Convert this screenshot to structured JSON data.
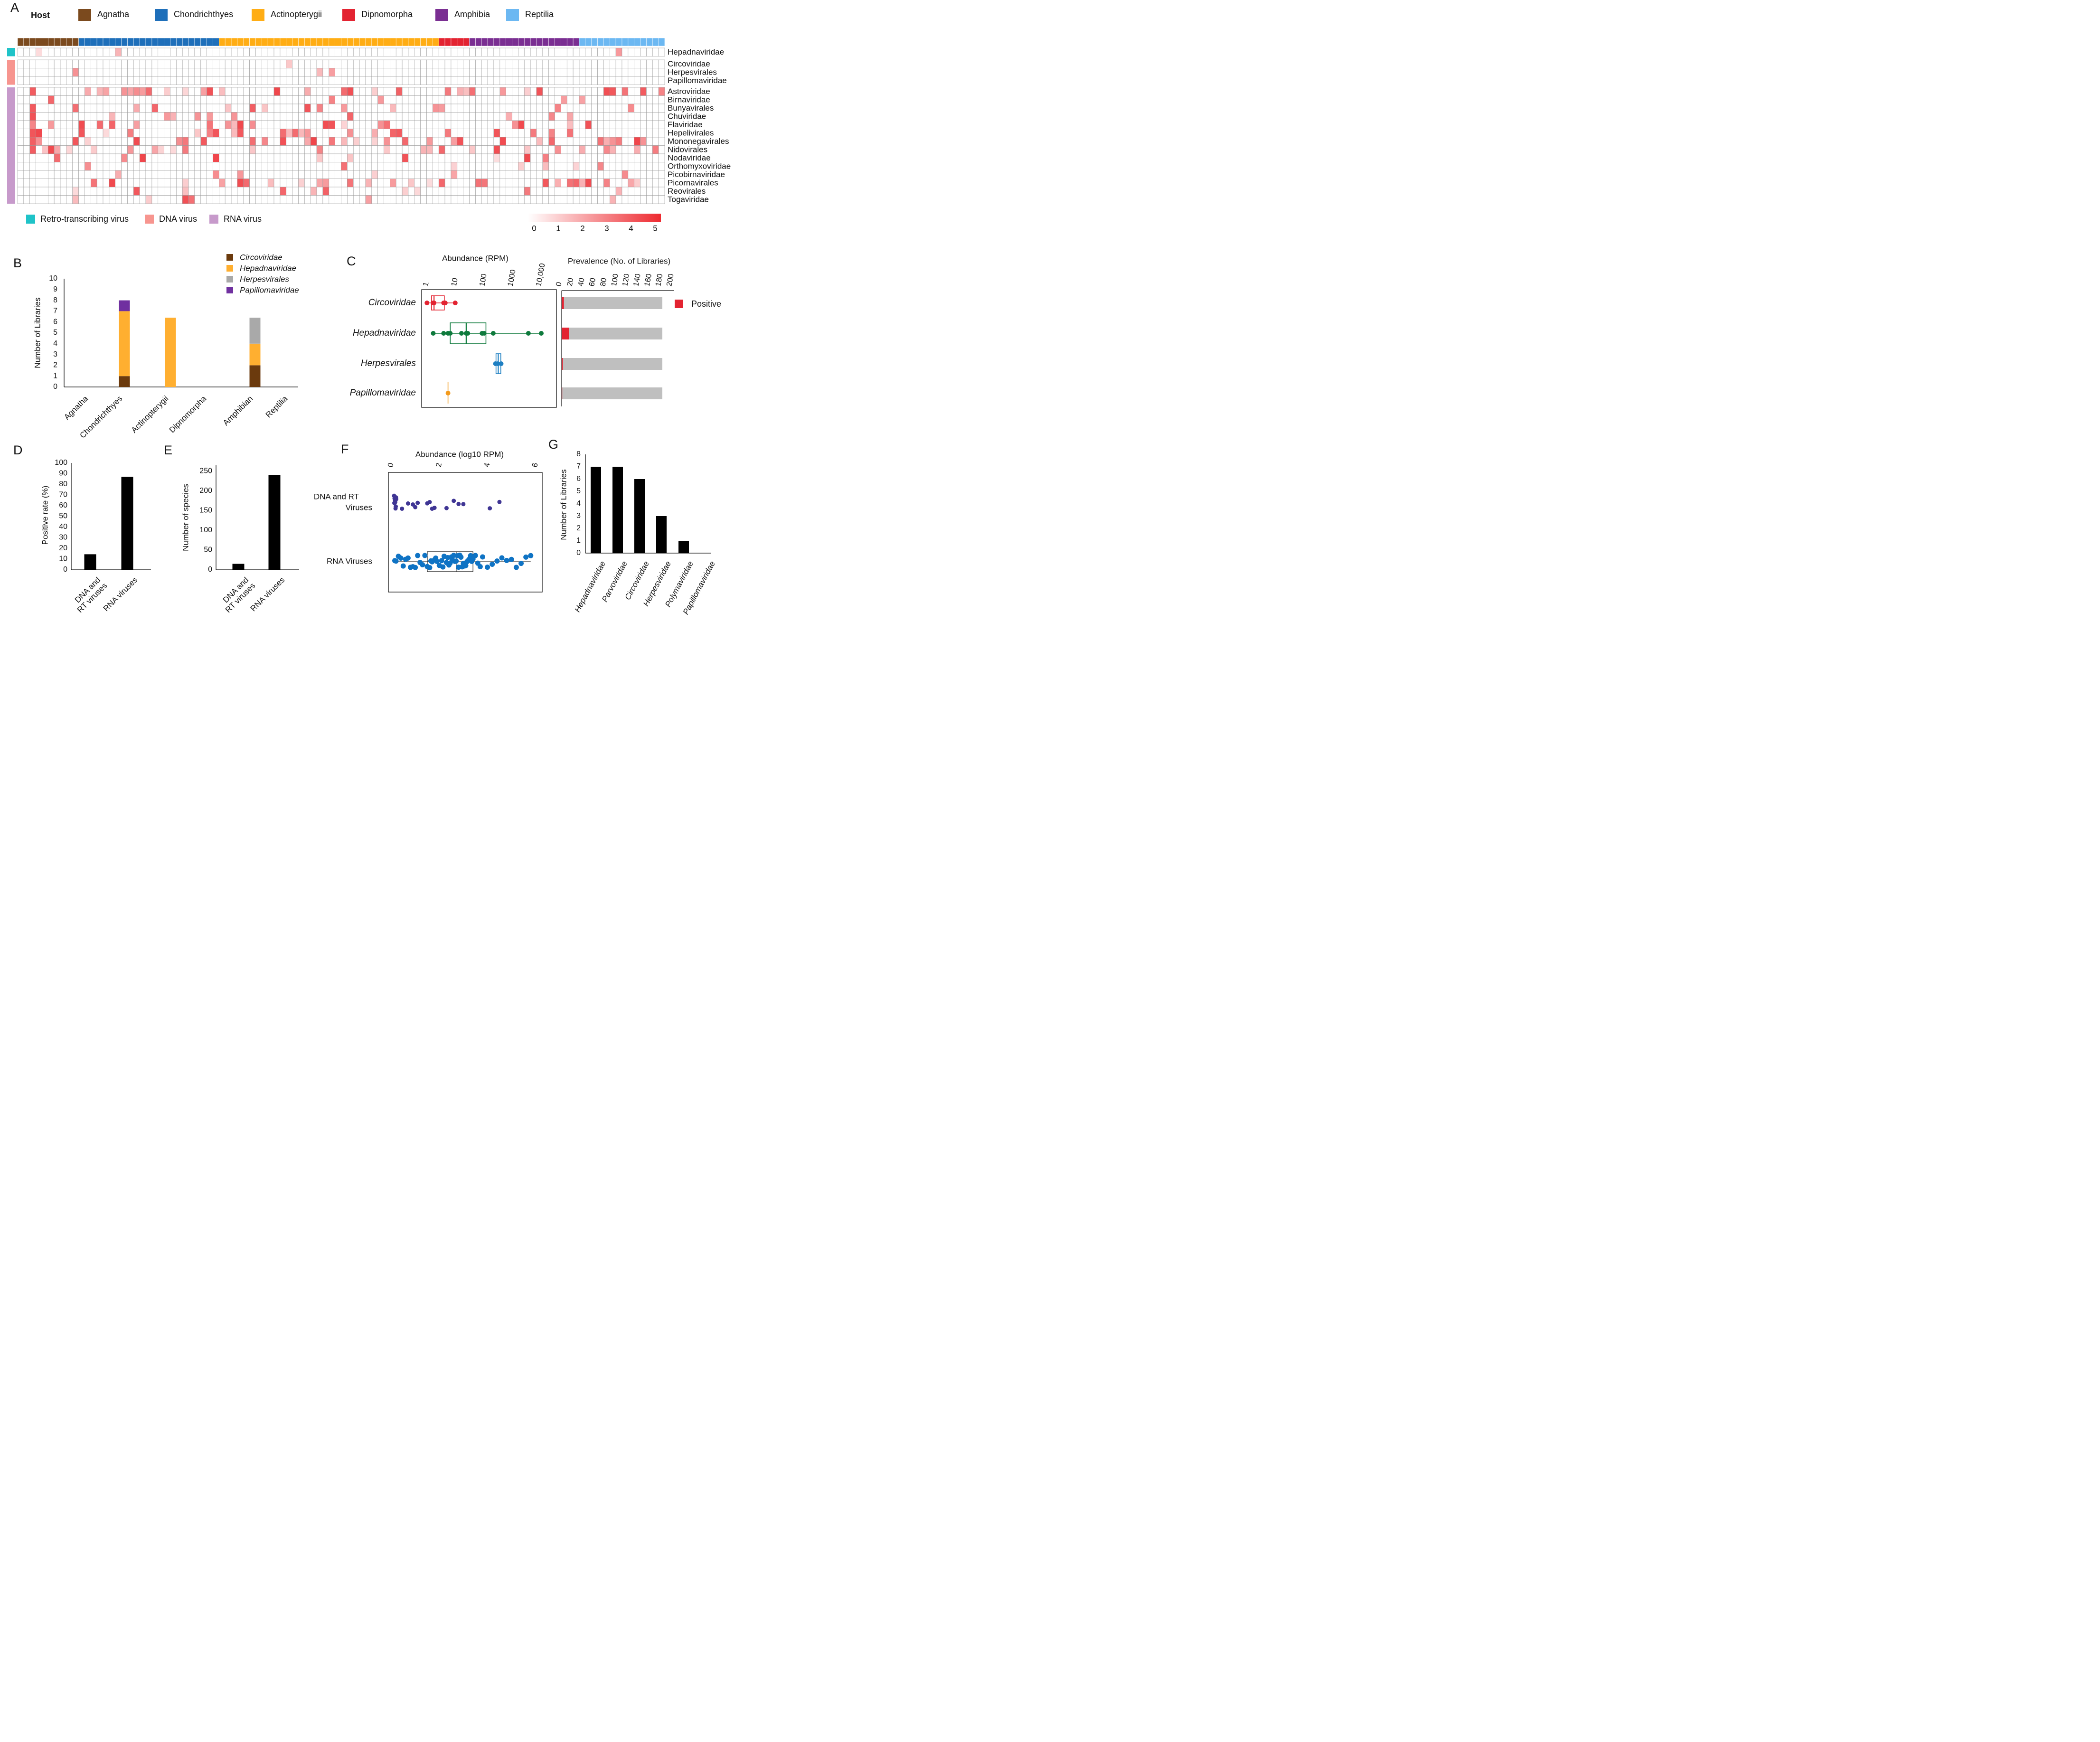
{
  "panel_letters": [
    "A",
    "B",
    "C",
    "D",
    "E",
    "F",
    "G"
  ],
  "chart_data": [
    {
      "panel": "A",
      "type": "heatmap",
      "host_legend_title": "Host",
      "hosts": [
        {
          "name": "Agnatha",
          "color": "#7B4A1E",
          "n_libraries": 10
        },
        {
          "name": "Chondrichthyes",
          "color": "#1E6FBA",
          "n_libraries": 23
        },
        {
          "name": "Actinopterygii",
          "color": "#FFAD14",
          "n_libraries": 36
        },
        {
          "name": "Dipnomorpha",
          "color": "#E32331",
          "n_libraries": 5
        },
        {
          "name": "Amphibia",
          "color": "#7A2E92",
          "n_libraries": 18
        },
        {
          "name": "Reptilia",
          "color": "#6CB8F2",
          "n_libraries": 14
        }
      ],
      "virus_types": [
        {
          "name": "Retro-transcribing virus",
          "color": "#1FC3C8"
        },
        {
          "name": "DNA virus",
          "color": "#F7958F"
        },
        {
          "name": "RNA virus",
          "color": "#C79ACB"
        }
      ],
      "row_groups": [
        {
          "type": "Retro-transcribing virus",
          "rows": [
            "Hepadnaviridae"
          ]
        },
        {
          "type": "DNA virus",
          "rows": [
            "Circoviridae",
            "Herpesvirales",
            "Papillomaviridae"
          ]
        },
        {
          "type": "RNA virus",
          "rows": [
            "Astroviridae",
            "Birnaviridae",
            "Bunyavirales",
            "Chuviridae",
            "Flaviridae",
            "Hepelivirales",
            "Mononegavirales",
            "Nidovirales",
            "Nodaviridae",
            "Orthomyxoviridae",
            "Picobirnaviridae",
            "Picornavirales",
            "Reovirales",
            "Togaviridae"
          ]
        }
      ],
      "scale": {
        "min": 0,
        "max": 5,
        "ticks": [
          "0",
          "1",
          "2",
          "3",
          "4",
          "5"
        ],
        "low_color": "#FFFFFF",
        "high_color": "#EE2A30"
      },
      "note": "cell values approximate: log10 abundance estimated from shading"
    },
    {
      "panel": "B",
      "type": "bar",
      "stacked": true,
      "ylabel": "Number of Libraries",
      "ylim": [
        0,
        10
      ],
      "yticks": [
        "0",
        "1",
        "2",
        "3",
        "4",
        "5",
        "6",
        "7",
        "8",
        "9",
        "10"
      ],
      "categories": [
        "Agnatha",
        "Chondrichthyes",
        "Actinopterygii",
        "Dipnomorpha",
        "Amphibian",
        "Reptilia"
      ],
      "series": [
        {
          "name": "Circoviridae",
          "color": "#6B3A0D",
          "values": [
            0,
            1,
            0,
            0,
            2,
            0
          ]
        },
        {
          "name": "Hepadnaviridae",
          "color": "#FFAF30",
          "values": [
            0,
            6,
            6.4,
            0,
            2,
            0
          ]
        },
        {
          "name": "Herpesvirales",
          "color": "#A9A9A9",
          "values": [
            0,
            0,
            0,
            0,
            2.4,
            0
          ]
        },
        {
          "name": "Papillomaviridae",
          "color": "#7030A0",
          "values": [
            0,
            1,
            0,
            0,
            0,
            0
          ]
        }
      ],
      "legend": "top-right"
    },
    {
      "panel": "C",
      "type": "scatter",
      "xlabel": "Abundance (RPM)",
      "xscale": "log10",
      "xticks": [
        "1",
        "10",
        "100",
        "1000",
        "10,000"
      ],
      "categories": [
        "Circoviridae",
        "Hepadnaviridae",
        "Herpesvirales",
        "Papillomaviridae"
      ],
      "series": [
        {
          "name": "Circoviridae",
          "color": "#E32331",
          "points": [
            0.9,
            1.5,
            1.6,
            3.5,
            4.0,
            9.0
          ],
          "box": {
            "q1": 1.3,
            "median": 1.6,
            "q3": 3.7,
            "whisker_low": 0.9,
            "whisker_high": 9.0
          }
        },
        {
          "name": "Hepadnaviridae",
          "color": "#0E7A3C",
          "points": [
            1.5,
            3.5,
            5.0,
            6.0,
            15.0,
            22.0,
            25.0,
            80.0,
            95.0,
            200.0,
            3500.0,
            10000.0
          ],
          "box": {
            "q1": 6.0,
            "median": 22.0,
            "q3": 110.0,
            "whisker_low": 1.5,
            "whisker_high": 10000.0
          }
        },
        {
          "name": "Herpesvirales",
          "color": "#1E7FC2",
          "points": [
            240.0,
            290.0,
            380.0
          ],
          "box": {
            "q1": 250.0,
            "median": 300.0,
            "q3": 370.0,
            "whisker_low": 240.0,
            "whisker_high": 380.0
          }
        },
        {
          "name": "Papillomaviridae",
          "color": "#F39A1B",
          "points": [
            5.0
          ],
          "box": null
        }
      ],
      "prevalence": {
        "xlabel": "Prevalence (No. of Libraries)",
        "xlim": [
          0,
          200
        ],
        "xticks": [
          "0",
          "20",
          "40",
          "60",
          "80",
          "100",
          "120",
          "140",
          "160",
          "180",
          "200"
        ],
        "total": 182,
        "positive": [
          4,
          13,
          2,
          1
        ],
        "legend": "Positive",
        "positive_color": "#E32331",
        "total_color": "#BFBFBF"
      }
    },
    {
      "panel": "D",
      "type": "bar",
      "ylabel": "Positive rate (%)",
      "ylim": [
        0,
        100
      ],
      "yticks": [
        "0",
        "10",
        "20",
        "30",
        "40",
        "50",
        "60",
        "70",
        "80",
        "90",
        "100"
      ],
      "categories": [
        [
          "DNA and",
          "RT viruses"
        ],
        [
          "RNA viruses"
        ]
      ],
      "values": [
        14.5,
        87
      ]
    },
    {
      "panel": "E",
      "type": "bar",
      "ylabel": "Number of species",
      "ylim": [
        0,
        265
      ],
      "yticks": [
        "0",
        "50",
        "100",
        "150",
        "200",
        "250"
      ],
      "categories": [
        [
          "DNA and",
          "RT viruses"
        ],
        [
          "RNA viruses"
        ]
      ],
      "values": [
        15,
        240
      ]
    },
    {
      "panel": "F",
      "type": "scatter",
      "xlabel": "Abundance (log10 RPM)",
      "xlim": [
        0,
        6
      ],
      "xticks": [
        "0",
        "2",
        "4",
        "6"
      ],
      "categories": [
        [
          "DNA and RT",
          "Viruses"
        ],
        [
          "RNA Viruses"
        ]
      ],
      "series": [
        {
          "name": "DNA and RT Viruses",
          "color": "#3F3594",
          "points": [
            0.02,
            0.04,
            0.05,
            0.06,
            0.08,
            0.1,
            0.03,
            0.07,
            0.09,
            0.11,
            0.35,
            0.6,
            0.8,
            0.9,
            1.0,
            1.4,
            1.5,
            1.6,
            1.7,
            2.2,
            2.5,
            2.7,
            2.9,
            4.0,
            4.4
          ]
        },
        {
          "name": "RNA Viruses",
          "color": "#0F73C4",
          "box": {
            "q1": 1.4,
            "median": 2.6,
            "q3": 3.3,
            "whisker_low": 0.0,
            "whisker_high": 5.7
          },
          "points": [
            0.05,
            0.1,
            0.2,
            0.3,
            0.4,
            0.5,
            0.6,
            0.7,
            0.8,
            0.9,
            1.0,
            1.1,
            1.2,
            1.3,
            1.4,
            1.5,
            1.55,
            1.6,
            1.7,
            1.75,
            1.8,
            1.9,
            2.0,
            2.05,
            2.1,
            2.2,
            2.25,
            2.3,
            2.35,
            2.4,
            2.45,
            2.5,
            2.55,
            2.6,
            2.65,
            2.7,
            2.75,
            2.8,
            2.85,
            2.9,
            2.95,
            3.0,
            3.05,
            3.1,
            3.15,
            3.2,
            3.25,
            3.3,
            3.4,
            3.5,
            3.6,
            3.7,
            3.9,
            4.1,
            4.3,
            4.5,
            4.7,
            4.9,
            5.1,
            5.3,
            5.5,
            5.7
          ]
        }
      ]
    },
    {
      "panel": "G",
      "type": "bar",
      "ylabel": "Number of Libraries",
      "ylim": [
        0,
        8
      ],
      "yticks": [
        "0",
        "1",
        "2",
        "3",
        "4",
        "5",
        "6",
        "7",
        "8"
      ],
      "categories": [
        "Hepadnaviridae",
        "Parvoviridae",
        "Circoviridae",
        "Herpesviridae",
        "Polymaviridae",
        "Papillomaviridae"
      ],
      "values": [
        7,
        7,
        6,
        3,
        1,
        0
      ]
    }
  ]
}
